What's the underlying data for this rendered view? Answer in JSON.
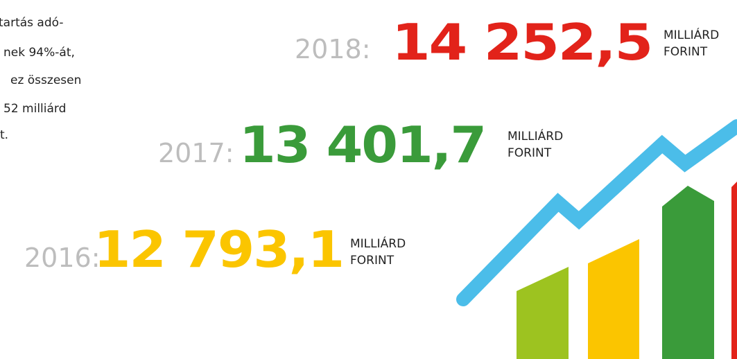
{
  "intro_lines": [
    "tartás adó-",
    "nek 94%-át,",
    "ez összesen",
    "52 milliárd",
    "t."
  ],
  "figures": [
    {
      "year": "2018:",
      "amount": "14 252,5",
      "unit_line1": "MILLIÁRD",
      "unit_line2": "FORINT"
    },
    {
      "year": "2017:",
      "amount": "13 401,7",
      "unit_line1": "MILLIÁRD",
      "unit_line2": "FORINT"
    },
    {
      "year": "2016:",
      "amount": "12 793,1",
      "unit_line1": "MILLIÁRD",
      "unit_line2": "FORINT"
    }
  ]
}
